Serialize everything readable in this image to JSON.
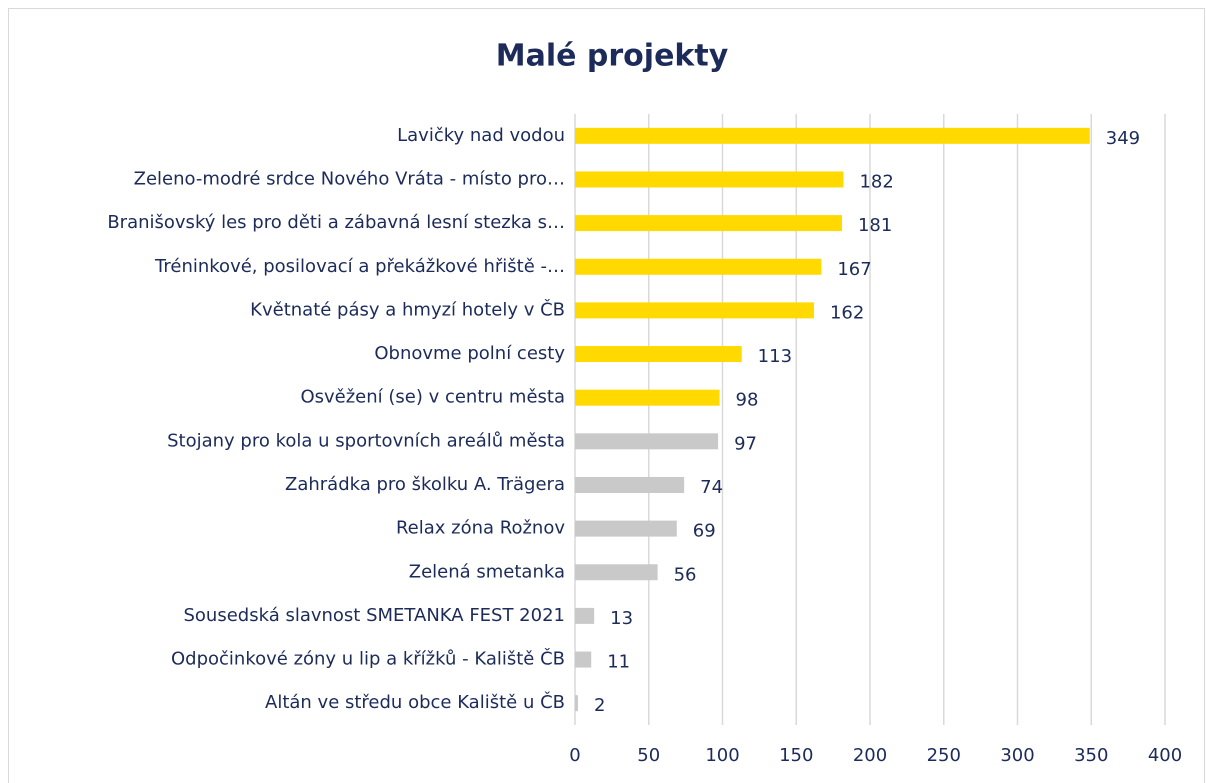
{
  "chart_data": {
    "type": "bar",
    "orientation": "horizontal",
    "title": "Malé projekty",
    "categories": [
      "Lavičky nad vodou",
      "Zeleno-modré srdce Nového Vráta - místo pro…",
      "Branišovský les pro děti a zábavná lesní stezka s…",
      "Tréninkové, posilovací a překážkové hřiště -…",
      "Květnaté pásy a hmyzí hotely v ČB",
      "Obnovme polní cesty",
      "Osvěžení (se) v centru města",
      "Stojany pro kola u sportovních areálů města",
      "Zahrádka pro školku A. Trägera",
      "Relax zóna Rožnov",
      "Zelená smetanka",
      "Sousedská slavnost SMETANKA FEST 2021",
      "Odpočinkové zóny u lip a křížků - Kaliště ČB",
      "Altán ve středu obce Kaliště u ČB"
    ],
    "values": [
      349,
      182,
      181,
      167,
      162,
      113,
      98,
      97,
      74,
      69,
      56,
      13,
      11,
      2
    ],
    "colors": [
      "#ffd900",
      "#ffd900",
      "#ffd900",
      "#ffd900",
      "#ffd900",
      "#ffd900",
      "#ffd900",
      "#c9c9c9",
      "#c9c9c9",
      "#c9c9c9",
      "#c9c9c9",
      "#c9c9c9",
      "#c9c9c9",
      "#c9c9c9"
    ],
    "xlim": [
      0,
      400
    ],
    "xticks": [
      0,
      50,
      100,
      150,
      200,
      250,
      300,
      350,
      400
    ],
    "grid": true
  }
}
